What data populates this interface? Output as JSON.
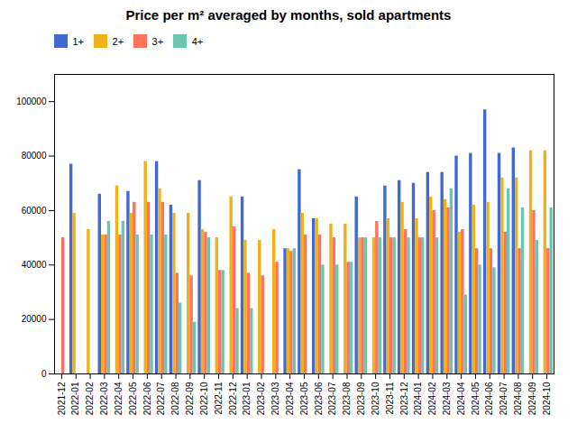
{
  "chart_data": {
    "type": "bar",
    "title": "Price per m² averaged by months, sold apartments",
    "categories": [
      "2021-12",
      "2022-01",
      "2022-02",
      "2022-03",
      "2022-04",
      "2022-05",
      "2022-06",
      "2022-07",
      "2022-08",
      "2022-09",
      "2022-10",
      "2022-11",
      "2022-12",
      "2023-01",
      "2023-02",
      "2023-03",
      "2023-04",
      "2023-05",
      "2023-06",
      "2023-07",
      "2023-08",
      "2023-09",
      "2023-10",
      "2023-11",
      "2023-12",
      "2024-01",
      "2024-02",
      "2024-03",
      "2024-04",
      "2024-05",
      "2024-06",
      "2024-07",
      "2024-08",
      "2024-09",
      "2024-10"
    ],
    "series": [
      {
        "name": "1+",
        "values": [
          null,
          77000,
          null,
          66000,
          null,
          67000,
          null,
          78000,
          62000,
          null,
          71000,
          null,
          null,
          65000,
          null,
          null,
          46000,
          75000,
          57000,
          null,
          null,
          65000,
          null,
          69000,
          71000,
          70000,
          74000,
          74000,
          80000,
          81000,
          97000,
          81000,
          83000,
          null,
          null
        ]
      },
      {
        "name": "2+",
        "values": [
          null,
          59000,
          53000,
          51000,
          69000,
          59000,
          78000,
          68000,
          59000,
          59000,
          53000,
          50000,
          65000,
          49000,
          49000,
          53000,
          46000,
          59000,
          57000,
          55000,
          55000,
          50000,
          50000,
          57000,
          63000,
          57000,
          65000,
          64000,
          52000,
          62000,
          63000,
          72000,
          72000,
          82000,
          82000
        ]
      },
      {
        "name": "3+",
        "values": [
          50000,
          null,
          null,
          51000,
          51000,
          63000,
          63000,
          63000,
          37000,
          36000,
          52000,
          38000,
          54000,
          37000,
          36000,
          41000,
          45000,
          51000,
          51000,
          50000,
          41000,
          50000,
          56000,
          50000,
          53000,
          50000,
          60000,
          61000,
          53000,
          46000,
          46000,
          52000,
          46000,
          60000,
          46000
        ]
      },
      {
        "name": "4+",
        "values": [
          null,
          null,
          null,
          56000,
          56000,
          51000,
          51000,
          51000,
          26000,
          19000,
          50000,
          38000,
          24000,
          24000,
          null,
          null,
          46000,
          null,
          40000,
          40000,
          41000,
          50000,
          50000,
          50000,
          50000,
          50000,
          50000,
          68000,
          29000,
          40000,
          39000,
          68000,
          61000,
          49000,
          61000
        ]
      }
    ],
    "ylim": [
      0,
      110000
    ],
    "yticks": [
      0,
      20000,
      40000,
      60000,
      80000,
      100000
    ],
    "legend": "upper left",
    "grid": false
  }
}
